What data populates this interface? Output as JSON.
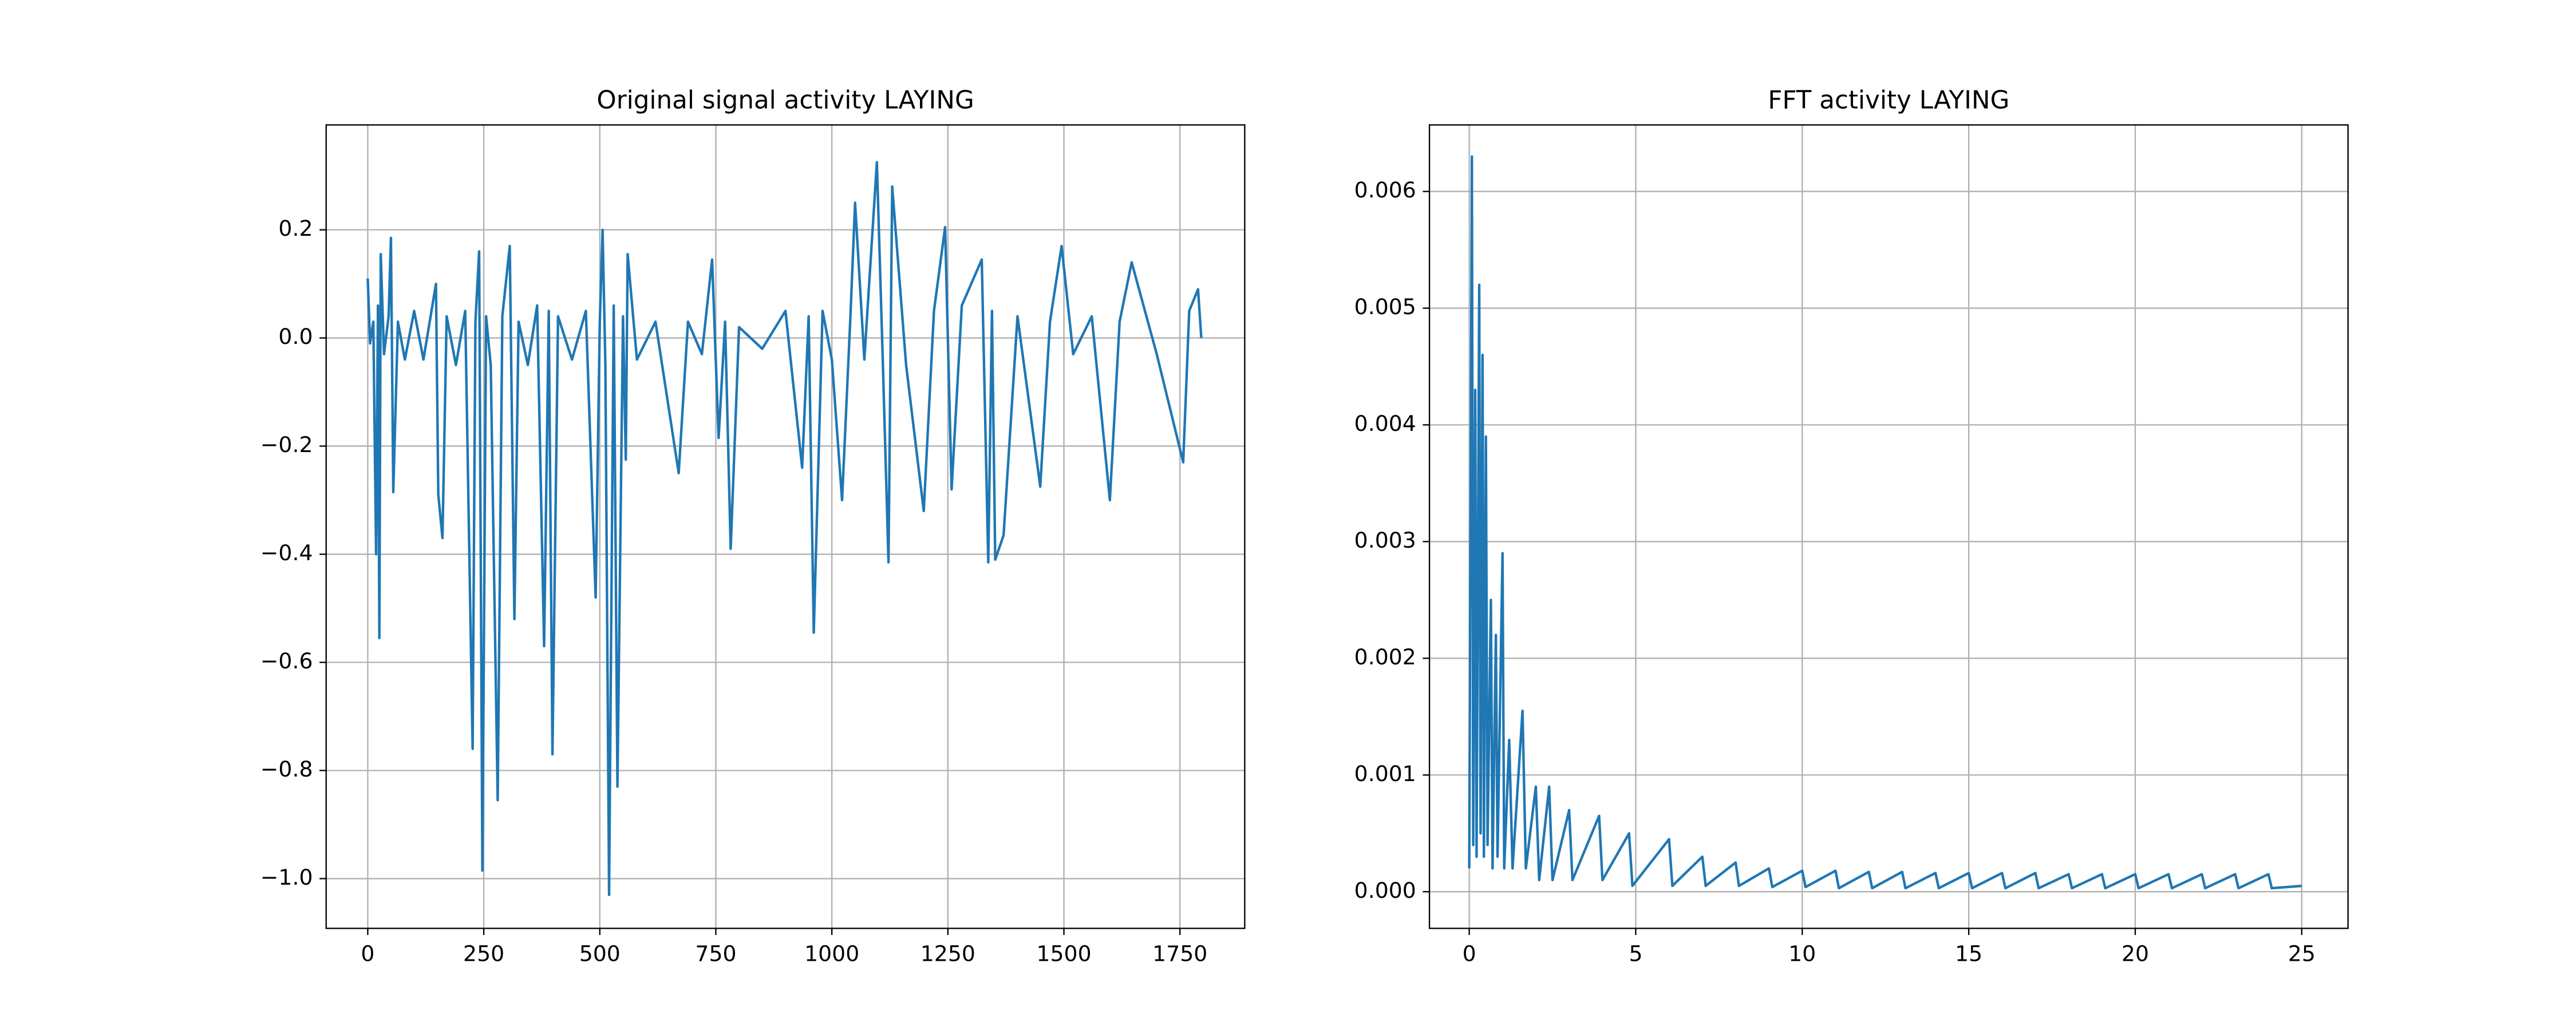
{
  "chart_data": [
    {
      "type": "line",
      "title": "Original signal activity LAYING",
      "color": "#1f77b4",
      "grid": true,
      "x": [
        0,
        5,
        12,
        18,
        22,
        25,
        28,
        35,
        45,
        50,
        55,
        65,
        80,
        100,
        120,
        147,
        152,
        161,
        170,
        190,
        210,
        226,
        232,
        240,
        247,
        255,
        265,
        280,
        290,
        306,
        316,
        325,
        345,
        365,
        380,
        390,
        398,
        410,
        440,
        470,
        491,
        500,
        506,
        512,
        520,
        530,
        538,
        550,
        556,
        560,
        580,
        620,
        670,
        690,
        720,
        742,
        756,
        770,
        782,
        800,
        850,
        900,
        936,
        950,
        961,
        980,
        1000,
        1022,
        1040,
        1050,
        1070,
        1097,
        1110,
        1122,
        1130,
        1160,
        1198,
        1220,
        1244,
        1258,
        1280,
        1323,
        1337,
        1345,
        1352,
        1370,
        1400,
        1449,
        1470,
        1495,
        1520,
        1560,
        1599,
        1620,
        1646,
        1700,
        1757,
        1770,
        1789,
        1796
      ],
      "values": [
        0.11,
        -0.01,
        0.03,
        -0.4,
        0.06,
        -0.555,
        0.155,
        -0.03,
        0.04,
        0.185,
        -0.285,
        0.03,
        -0.04,
        0.05,
        -0.04,
        0.1,
        -0.29,
        -0.37,
        0.04,
        -0.05,
        0.05,
        -0.76,
        0.03,
        0.16,
        -0.985,
        0.04,
        -0.05,
        -0.855,
        0.04,
        0.17,
        -0.52,
        0.03,
        -0.05,
        0.06,
        -0.57,
        0.05,
        -0.77,
        0.04,
        -0.04,
        0.05,
        -0.48,
        0.03,
        0.2,
        -0.05,
        -1.03,
        0.06,
        -0.83,
        0.04,
        -0.225,
        0.155,
        -0.04,
        0.03,
        -0.25,
        0.03,
        -0.03,
        0.145,
        -0.185,
        0.03,
        -0.39,
        0.02,
        -0.02,
        0.05,
        -0.24,
        0.04,
        -0.545,
        0.05,
        -0.04,
        -0.3,
        0.04,
        0.25,
        -0.04,
        0.325,
        -0.05,
        -0.415,
        0.28,
        -0.05,
        -0.32,
        0.05,
        0.205,
        -0.28,
        0.06,
        0.145,
        -0.415,
        0.05,
        -0.41,
        -0.365,
        0.04,
        -0.275,
        0.03,
        0.17,
        -0.03,
        0.04,
        -0.3,
        0.03,
        0.14,
        -0.03,
        -0.23,
        0.05,
        0.09,
        0.0
      ],
      "xlim": [
        -89.6,
        1889.6
      ],
      "ylim": [
        -1.092,
        0.394
      ],
      "xticks": [
        0,
        250,
        500,
        750,
        1000,
        1250,
        1500,
        1750
      ],
      "yticks": [
        {
          "value": -1.0,
          "label": "−1.0"
        },
        {
          "value": -0.8,
          "label": "−0.8"
        },
        {
          "value": -0.6,
          "label": "−0.6"
        },
        {
          "value": -0.4,
          "label": "−0.4"
        },
        {
          "value": -0.2,
          "label": "−0.2"
        },
        {
          "value": 0.0,
          "label": "0.0"
        },
        0.2
      ]
    },
    {
      "type": "line",
      "title": "FFT activity LAYING",
      "color": "#1f77b4",
      "grid": true,
      "x": [
        0,
        0.08,
        0.12,
        0.18,
        0.22,
        0.3,
        0.34,
        0.4,
        0.44,
        0.5,
        0.55,
        0.65,
        0.7,
        0.8,
        0.85,
        1.0,
        1.05,
        1.2,
        1.3,
        1.6,
        1.7,
        2.0,
        2.1,
        2.4,
        2.5,
        3.0,
        3.1,
        3.9,
        4.0,
        4.8,
        4.9,
        6.0,
        6.1,
        7.0,
        7.1,
        8.0,
        8.1,
        9.0,
        9.1,
        10.0,
        10.1,
        11,
        11.1,
        12,
        12.1,
        13,
        13.1,
        14,
        14.1,
        15,
        15.1,
        16,
        16.1,
        17,
        17.1,
        18,
        18.1,
        19,
        19.1,
        20,
        20.1,
        21,
        21.1,
        22,
        22.1,
        23,
        23.1,
        24,
        24.1,
        25
      ],
      "values": [
        0.0002,
        0.0063,
        0.0004,
        0.0043,
        0.0003,
        0.0052,
        0.0005,
        0.0046,
        0.0003,
        0.0039,
        0.0004,
        0.0025,
        0.0002,
        0.0022,
        0.0003,
        0.0029,
        0.0002,
        0.0013,
        0.0002,
        0.00155,
        0.0002,
        0.0009,
        0.0001,
        0.0009,
        0.0001,
        0.0007,
        0.0001,
        0.00065,
        0.0001,
        0.0005,
        5e-05,
        0.00045,
        5e-05,
        0.0003,
        5e-05,
        0.00025,
        5e-05,
        0.0002,
        4e-05,
        0.00018,
        4e-05,
        0.00018,
        3e-05,
        0.00017,
        3e-05,
        0.00017,
        3e-05,
        0.00016,
        3e-05,
        0.00016,
        3e-05,
        0.00016,
        3e-05,
        0.00016,
        3e-05,
        0.00015,
        3e-05,
        0.00015,
        3e-05,
        0.00015,
        3e-05,
        0.00015,
        3e-05,
        0.00015,
        3e-05,
        0.00015,
        3e-05,
        0.00015,
        3e-05,
        5e-05
      ],
      "xlim": [
        -1.195,
        26.39
      ],
      "ylim": [
        -0.000314,
        0.00657
      ],
      "xticks": [
        0,
        5,
        10,
        15,
        20,
        25
      ],
      "yticks": [
        {
          "value": 0,
          "label": "0.000"
        },
        0.001,
        0.002,
        0.003,
        0.004,
        0.005,
        0.006
      ]
    }
  ]
}
